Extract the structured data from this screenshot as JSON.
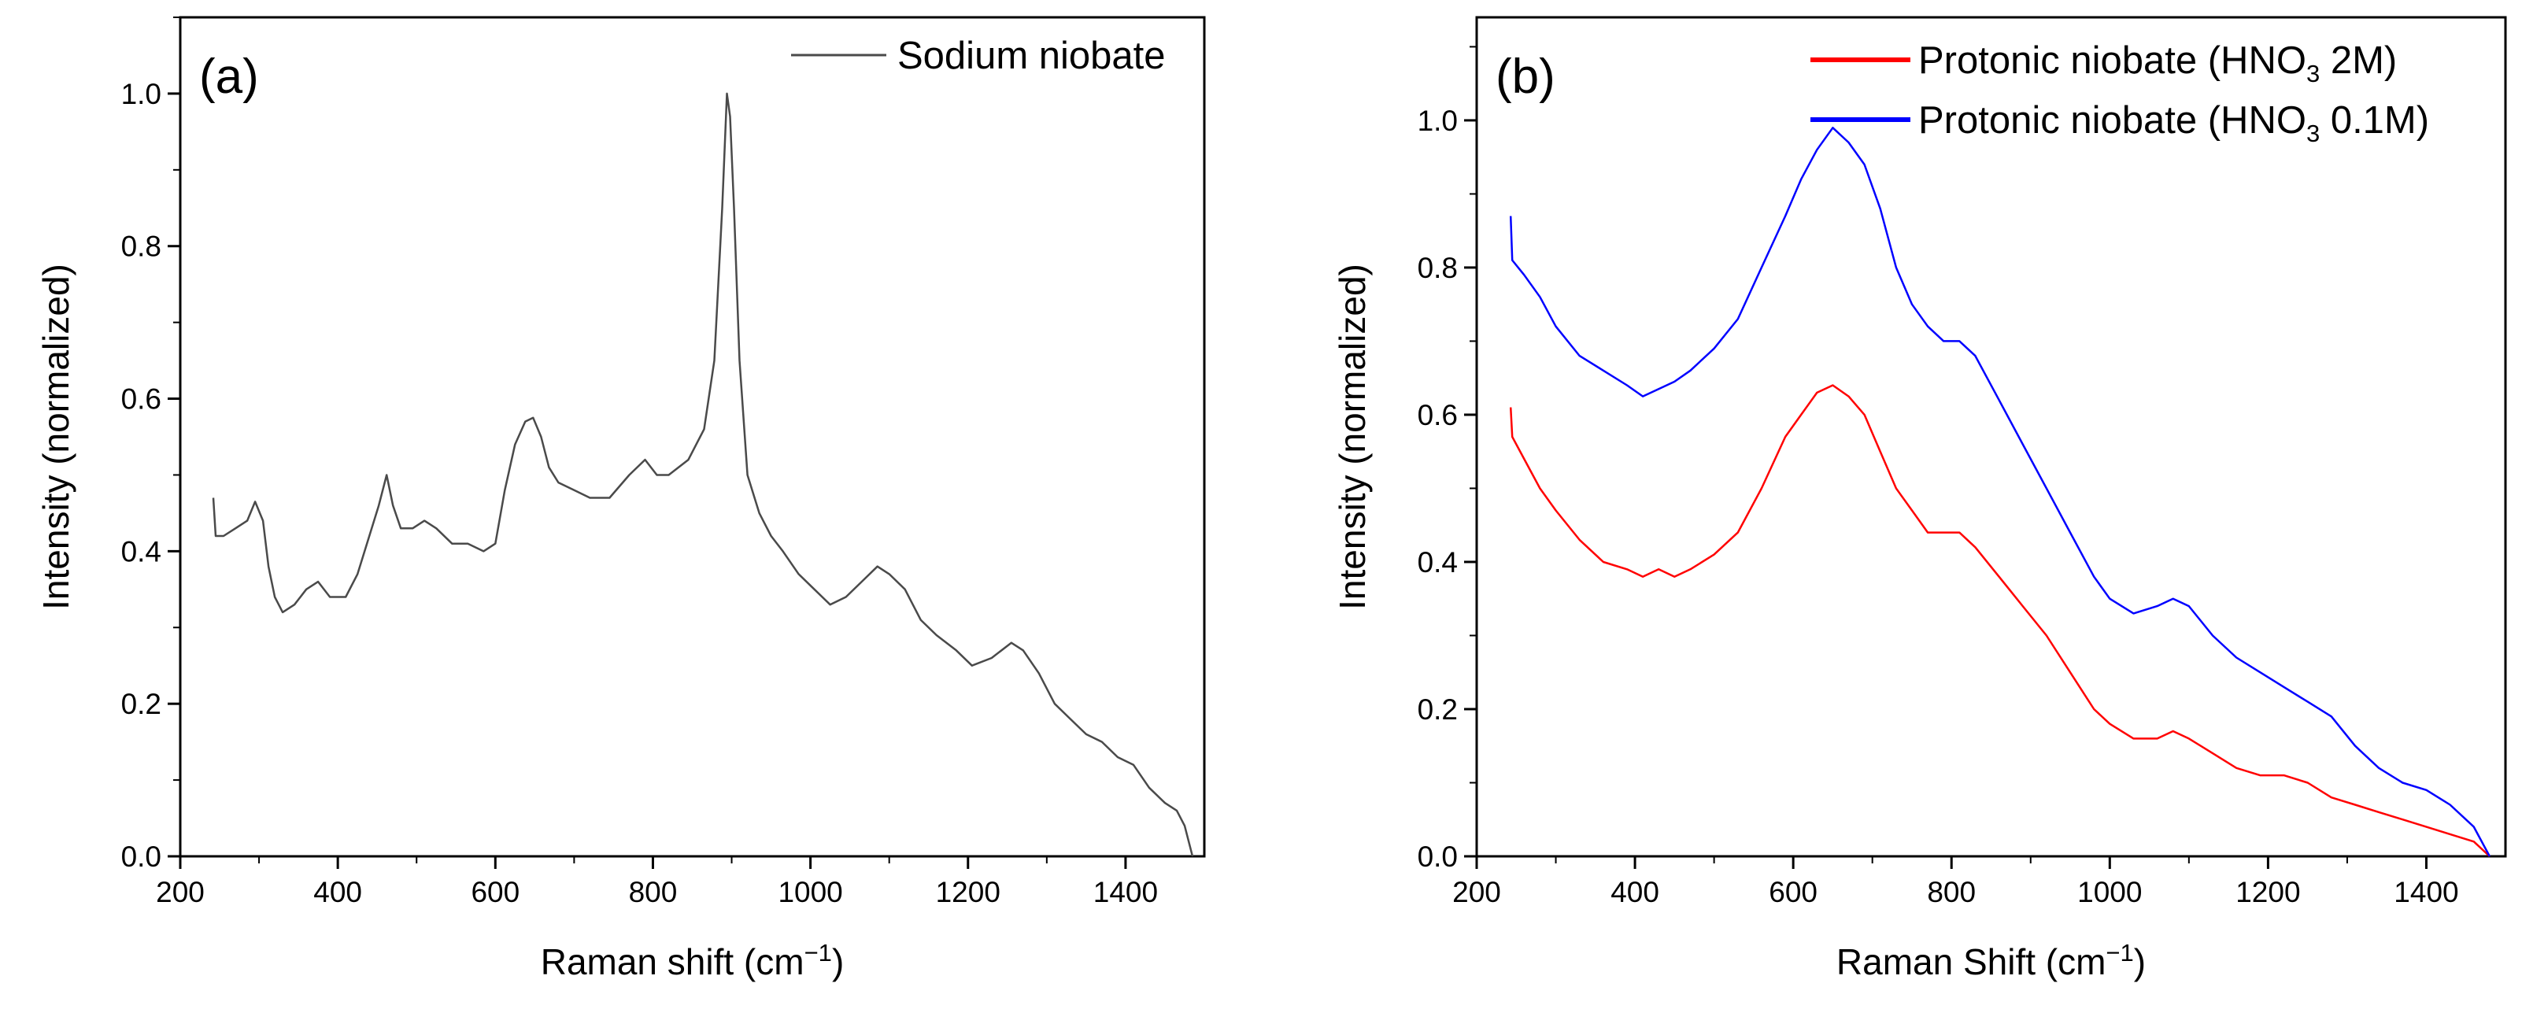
{
  "chart_data": [
    {
      "type": "line",
      "panel_label": "(a)",
      "xlabel": "Raman shift (cm",
      "xlabel_sup": "−1",
      "xlabel_close": ")",
      "ylabel": "Intensity (normalized)",
      "xlim": [
        200,
        1500
      ],
      "ylim": [
        0,
        1.1
      ],
      "xticks": [
        200,
        400,
        600,
        800,
        1000,
        1200,
        1400
      ],
      "yticks": [
        0.0,
        0.2,
        0.4,
        0.6,
        0.8,
        1.0
      ],
      "ytick_labels": [
        "0.0",
        "0.2",
        "0.4",
        "0.6",
        "0.8",
        "1.0"
      ],
      "legend": "top-right",
      "grid": false,
      "series": [
        {
          "name": "Sodium niobate",
          "color": "#4a4a4a",
          "x": [
            242,
            245,
            255,
            270,
            285,
            295,
            305,
            312,
            320,
            330,
            345,
            360,
            375,
            390,
            410,
            425,
            440,
            452,
            462,
            470,
            480,
            495,
            510,
            525,
            545,
            565,
            585,
            600,
            612,
            625,
            638,
            648,
            658,
            668,
            680,
            700,
            720,
            745,
            770,
            790,
            805,
            820,
            845,
            865,
            878,
            888,
            894,
            898,
            903,
            910,
            920,
            935,
            950,
            965,
            985,
            1005,
            1025,
            1045,
            1065,
            1085,
            1100,
            1120,
            1140,
            1160,
            1185,
            1205,
            1230,
            1255,
            1270,
            1290,
            1310,
            1330,
            1350,
            1370,
            1390,
            1410,
            1430,
            1450,
            1465,
            1475,
            1485
          ],
          "y": [
            0.47,
            0.42,
            0.42,
            0.43,
            0.44,
            0.465,
            0.44,
            0.38,
            0.34,
            0.32,
            0.33,
            0.35,
            0.36,
            0.34,
            0.34,
            0.37,
            0.42,
            0.46,
            0.5,
            0.46,
            0.43,
            0.43,
            0.44,
            0.43,
            0.41,
            0.41,
            0.4,
            0.41,
            0.48,
            0.54,
            0.57,
            0.575,
            0.55,
            0.51,
            0.49,
            0.48,
            0.47,
            0.47,
            0.5,
            0.52,
            0.5,
            0.5,
            0.52,
            0.56,
            0.65,
            0.85,
            1.0,
            0.97,
            0.85,
            0.65,
            0.5,
            0.45,
            0.42,
            0.4,
            0.37,
            0.35,
            0.33,
            0.34,
            0.36,
            0.38,
            0.37,
            0.35,
            0.31,
            0.29,
            0.27,
            0.25,
            0.26,
            0.28,
            0.27,
            0.24,
            0.2,
            0.18,
            0.16,
            0.15,
            0.13,
            0.12,
            0.09,
            0.07,
            0.06,
            0.04,
            0.0
          ]
        }
      ]
    },
    {
      "type": "line",
      "panel_label": "(b)",
      "xlabel": "Raman Shift (cm",
      "xlabel_sup": "−1",
      "xlabel_close": ")",
      "ylabel": "Intensity (normalized)",
      "xlim": [
        200,
        1500
      ],
      "ylim": [
        0,
        1.14
      ],
      "xticks": [
        200,
        400,
        600,
        800,
        1000,
        1200,
        1400
      ],
      "yticks": [
        0.0,
        0.2,
        0.4,
        0.6,
        0.8,
        1.0
      ],
      "ytick_labels": [
        "0.0",
        "0.2",
        "0.4",
        "0.6",
        "0.8",
        "1.0"
      ],
      "legend": "top-right",
      "grid": false,
      "series": [
        {
          "name": "Protonic niobate (HNO",
          "name_sub": "3",
          "name_rest": " 2M)",
          "color": "#ff0000",
          "x": [
            243,
            245,
            260,
            280,
            300,
            330,
            360,
            390,
            410,
            430,
            450,
            470,
            500,
            530,
            560,
            590,
            610,
            630,
            650,
            670,
            690,
            710,
            730,
            750,
            770,
            790,
            810,
            830,
            860,
            890,
            920,
            950,
            980,
            1000,
            1030,
            1060,
            1080,
            1100,
            1130,
            1160,
            1190,
            1220,
            1250,
            1280,
            1310,
            1340,
            1370,
            1400,
            1430,
            1460,
            1480
          ],
          "y": [
            0.61,
            0.57,
            0.54,
            0.5,
            0.47,
            0.43,
            0.4,
            0.39,
            0.38,
            0.39,
            0.38,
            0.39,
            0.41,
            0.44,
            0.5,
            0.57,
            0.6,
            0.63,
            0.64,
            0.625,
            0.6,
            0.55,
            0.5,
            0.47,
            0.44,
            0.44,
            0.44,
            0.42,
            0.38,
            0.34,
            0.3,
            0.25,
            0.2,
            0.18,
            0.16,
            0.16,
            0.17,
            0.16,
            0.14,
            0.12,
            0.11,
            0.11,
            0.1,
            0.08,
            0.07,
            0.06,
            0.05,
            0.04,
            0.03,
            0.02,
            0.0
          ]
        },
        {
          "name": "Protonic niobate (HNO",
          "name_sub": "3",
          "name_rest": " 0.1M)",
          "color": "#0000ff",
          "x": [
            243,
            245,
            260,
            280,
            300,
            330,
            360,
            390,
            410,
            430,
            450,
            470,
            500,
            530,
            560,
            590,
            610,
            630,
            650,
            670,
            690,
            710,
            730,
            750,
            770,
            790,
            810,
            830,
            860,
            890,
            920,
            950,
            980,
            1000,
            1030,
            1060,
            1080,
            1100,
            1130,
            1160,
            1190,
            1220,
            1250,
            1280,
            1310,
            1340,
            1370,
            1400,
            1430,
            1460,
            1480
          ],
          "y": [
            0.87,
            0.81,
            0.79,
            0.76,
            0.72,
            0.68,
            0.66,
            0.64,
            0.625,
            0.635,
            0.645,
            0.66,
            0.69,
            0.73,
            0.8,
            0.87,
            0.92,
            0.96,
            0.99,
            0.97,
            0.94,
            0.88,
            0.8,
            0.75,
            0.72,
            0.7,
            0.7,
            0.68,
            0.62,
            0.56,
            0.5,
            0.44,
            0.38,
            0.35,
            0.33,
            0.34,
            0.35,
            0.34,
            0.3,
            0.27,
            0.25,
            0.23,
            0.21,
            0.19,
            0.15,
            0.12,
            0.1,
            0.09,
            0.07,
            0.04,
            0.0
          ]
        }
      ]
    }
  ]
}
